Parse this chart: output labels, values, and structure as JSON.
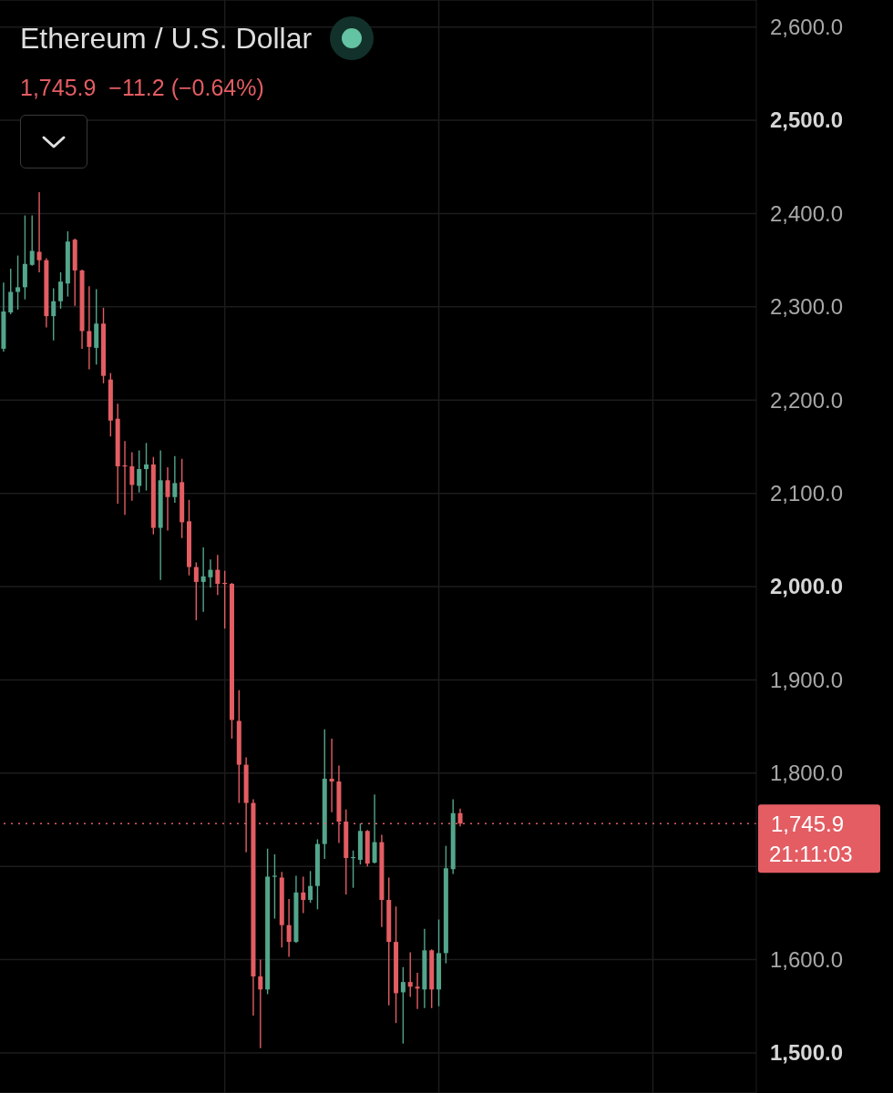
{
  "chart_data": {
    "type": "candlestick",
    "title": "Ethereum / U.S. Dollar",
    "subtitle": "1,745.9  −11.2 (−0.64%)",
    "categories": [
      null,
      null,
      null,
      null,
      null,
      null,
      null,
      null,
      null,
      null,
      null,
      null,
      null,
      null,
      null,
      null,
      null,
      null,
      null,
      null,
      null,
      null,
      null,
      null,
      null,
      null,
      null,
      null,
      null,
      null,
      null,
      null,
      null,
      null,
      null,
      null,
      null,
      null,
      null,
      null,
      null,
      null,
      null,
      null,
      null,
      null,
      null,
      null,
      null,
      null,
      null,
      null,
      null,
      null,
      null,
      null,
      null,
      null,
      null,
      null,
      null,
      null,
      null,
      null,
      null,
      null,
      null,
      null,
      null,
      null,
      null,
      null,
      null,
      null,
      null,
      null,
      null,
      null,
      null,
      null,
      null,
      null,
      null,
      null,
      null,
      null,
      null,
      null,
      null,
      null,
      null,
      null,
      null,
      null,
      null,
      null,
      null,
      null,
      null,
      null,
      null,
      null,
      null,
      null,
      null,
      null
    ],
    "ohlc": [
      [
        2255,
        2326,
        2252,
        2295
      ],
      [
        2294,
        2341,
        2292,
        2316
      ],
      [
        2316,
        2355,
        2297,
        2321
      ],
      [
        2321,
        2398,
        2308,
        2346
      ],
      [
        2345,
        2398,
        2344,
        2360
      ],
      [
        2359,
        2423,
        2337,
        2350
      ],
      [
        2350,
        2352,
        2278,
        2290
      ],
      [
        2290,
        2320,
        2264,
        2306
      ],
      [
        2306,
        2337,
        2298,
        2327
      ],
      [
        2325,
        2381,
        2311,
        2370
      ],
      [
        2372,
        2373,
        2301,
        2339
      ],
      [
        2339,
        2340,
        2255,
        2274
      ],
      [
        2274,
        2322,
        2233,
        2257
      ],
      [
        2256,
        2319,
        2238,
        2282
      ],
      [
        2282,
        2299,
        2218,
        2226
      ],
      [
        2222,
        2229,
        2161,
        2178
      ],
      [
        2180,
        2196,
        2089,
        2129
      ],
      [
        2130,
        2156,
        2077,
        2129
      ],
      [
        2129,
        2144,
        2092,
        2109
      ],
      [
        2108,
        2146,
        2101,
        2126
      ],
      [
        2126,
        2154,
        2103,
        2131
      ],
      [
        2131,
        2139,
        2056,
        2063
      ],
      [
        2063,
        2146,
        2007,
        2114
      ],
      [
        2114,
        2128,
        2060,
        2096
      ],
      [
        2096,
        2140,
        2090,
        2111
      ],
      [
        2112,
        2137,
        2052,
        2069
      ],
      [
        2070,
        2093,
        2012,
        2021
      ],
      [
        2021,
        2026,
        1964,
        2005
      ],
      [
        2005,
        2042,
        1973,
        2011
      ],
      [
        2010,
        2029,
        1999,
        2018
      ],
      [
        2018,
        2034,
        1991,
        2003
      ],
      [
        2004,
        2017,
        1955,
        2003
      ],
      [
        2003,
        2004,
        1837,
        1857
      ],
      [
        1856,
        1889,
        1768,
        1809
      ],
      [
        1809,
        1817,
        1715,
        1768
      ],
      [
        1768,
        1772,
        1540,
        1582
      ],
      [
        1582,
        1600,
        1505,
        1568
      ],
      [
        1568,
        1719,
        1563,
        1689
      ],
      [
        1689,
        1713,
        1644,
        1690
      ],
      [
        1688,
        1694,
        1613,
        1637
      ],
      [
        1637,
        1665,
        1603,
        1619
      ],
      [
        1619,
        1690,
        1618,
        1672
      ],
      [
        1672,
        1689,
        1650,
        1664
      ],
      [
        1664,
        1695,
        1661,
        1679
      ],
      [
        1679,
        1729,
        1654,
        1724
      ],
      [
        1724,
        1847,
        1708,
        1794
      ],
      [
        1794,
        1837,
        1758,
        1791
      ],
      [
        1791,
        1808,
        1725,
        1748
      ],
      [
        1748,
        1761,
        1670,
        1709
      ],
      [
        1709,
        1717,
        1677,
        1710
      ],
      [
        1707,
        1746,
        1702,
        1738
      ],
      [
        1738,
        1739,
        1700,
        1703
      ],
      [
        1704,
        1777,
        1703,
        1726
      ],
      [
        1726,
        1734,
        1635,
        1664
      ],
      [
        1664,
        1688,
        1551,
        1619
      ],
      [
        1619,
        1657,
        1532,
        1564
      ],
      [
        1565,
        1592,
        1510,
        1576
      ],
      [
        1576,
        1608,
        1560,
        1571
      ],
      [
        1571,
        1586,
        1547,
        1569
      ],
      [
        1568,
        1633,
        1548,
        1610
      ],
      [
        1610,
        1611,
        1548,
        1568
      ],
      [
        1568,
        1643,
        1550,
        1607
      ],
      [
        1607,
        1722,
        1596,
        1698
      ],
      [
        1697,
        1772,
        1692,
        1757.1
      ],
      [
        1757.1,
        1762,
        1743,
        1745.9
      ],
      null,
      null,
      null,
      null,
      null,
      null,
      null,
      null,
      null,
      null,
      null,
      null,
      null,
      null,
      null,
      null,
      null,
      null,
      null,
      null,
      null,
      null,
      null,
      null,
      null,
      null,
      null,
      null,
      null,
      null,
      null,
      null,
      null,
      null,
      null,
      null,
      null,
      null,
      null,
      null,
      null
    ],
    "colors": [
      "#53a58b",
      "#53a58b",
      "#53a58b",
      "#53a58b",
      "#53a58b",
      "#e35d63",
      "#e35d63",
      "#53a58b",
      "#53a58b",
      "#53a58b",
      "#e35d63",
      "#e35d63",
      "#e35d63",
      "#53a58b",
      "#e35d63",
      "#e35d63",
      "#e35d63",
      "#e35d63",
      "#e35d63",
      "#53a58b",
      "#53a58b",
      "#e35d63",
      "#53a58b",
      "#e35d63",
      "#53a58b",
      "#e35d63",
      "#e35d63",
      "#e35d63",
      "#53a58b",
      "#53a58b",
      "#e35d63",
      "#e35d63",
      "#e35d63",
      "#e35d63",
      "#e35d63",
      "#e35d63",
      "#e35d63",
      "#53a58b",
      "#53a58b",
      "#e35d63",
      "#e35d63",
      "#53a58b",
      "#e35d63",
      "#53a58b",
      "#53a58b",
      "#53a58b",
      "#e35d63",
      "#e35d63",
      "#e35d63",
      "#53a58b",
      "#53a58b",
      "#e35d63",
      "#53a58b",
      "#e35d63",
      "#e35d63",
      "#e35d63",
      "#53a58b",
      "#e35d63",
      "#e35d63",
      "#53a58b",
      "#e35d63",
      "#53a58b",
      "#53a58b",
      "#53a58b",
      "#e35d63",
      null,
      null,
      null,
      null,
      null,
      null,
      null,
      null,
      null,
      null,
      null,
      null,
      null,
      null,
      null,
      null,
      null,
      null,
      null,
      null,
      null,
      null,
      null,
      null,
      null,
      null,
      null,
      null,
      null,
      null,
      null,
      null,
      null,
      null,
      null,
      null,
      null,
      null,
      null,
      null,
      null
    ],
    "ylim": [
      1457,
      2629
    ],
    "yticks": [
      {
        "value": 1500,
        "label": "1,500.0"
      },
      {
        "value": 1600,
        "label": "1,600.0"
      },
      {
        "value": 1700,
        "label": null
      },
      {
        "value": 1800,
        "label": "1,800.0"
      },
      {
        "value": 1900,
        "label": "1,900.0"
      },
      {
        "value": 2000,
        "label": "2,000.0"
      },
      {
        "value": 2100,
        "label": "2,100.0"
      },
      {
        "value": 2200,
        "label": "2,200.0"
      },
      {
        "value": 2300,
        "label": "2,300.0"
      },
      {
        "value": 2400,
        "label": "2,400.0"
      },
      {
        "value": 2500,
        "label": "2,500.0"
      },
      {
        "value": 2600,
        "label": "2,600.0"
      }
    ],
    "ref_lines": [
      {
        "axis": "y",
        "value": 1745.9,
        "label": "1,745.9",
        "color": "#e35d63",
        "line_style": "dotted"
      }
    ],
    "annotations": [
      "21:11:03"
    ],
    "grid": true,
    "tick_labels": "y"
  }
}
